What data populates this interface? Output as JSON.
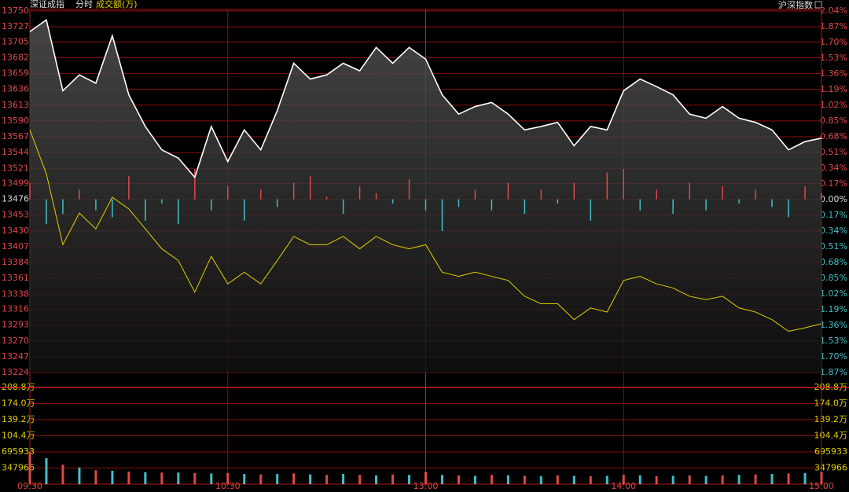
{
  "chart_data": {
    "type": "line",
    "title": "深证成指",
    "subtitle": "分时",
    "volume_label": "成交额(万)",
    "right_title": "沪深指数",
    "xlim": [
      0,
      240
    ],
    "xticks": [
      {
        "value": 0,
        "label": "09:30"
      },
      {
        "value": 60,
        "label": "10:30"
      },
      {
        "value": 120,
        "label": "13:00"
      },
      {
        "value": 180,
        "label": "14:00"
      },
      {
        "value": 240,
        "label": "15:00"
      }
    ],
    "x": [
      0,
      5,
      10,
      15,
      20,
      25,
      30,
      35,
      40,
      45,
      50,
      55,
      60,
      65,
      70,
      75,
      80,
      85,
      90,
      95,
      100,
      105,
      110,
      115,
      120,
      125,
      130,
      135,
      140,
      145,
      150,
      155,
      160,
      165,
      170,
      175,
      180,
      185,
      190,
      195,
      200,
      205,
      210,
      215,
      220,
      225,
      230,
      235,
      240
    ],
    "ylim": [
      13224,
      13750
    ],
    "yticks": [
      13750,
      13727,
      13705,
      13682,
      13659,
      13636,
      13613,
      13590,
      13567,
      13544,
      13521,
      13499,
      13476,
      13453,
      13430,
      13407,
      13384,
      13361,
      13338,
      13316,
      13293,
      13270,
      13247,
      13224
    ],
    "y2lim": [
      -1.87,
      2.04
    ],
    "y2ticks": [
      {
        "value": 2.04,
        "label": "2.04%"
      },
      {
        "value": 1.87,
        "label": "1.87%"
      },
      {
        "value": 1.7,
        "label": "1.70%"
      },
      {
        "value": 1.53,
        "label": "1.53%"
      },
      {
        "value": 1.36,
        "label": "1.36%"
      },
      {
        "value": 1.19,
        "label": "1.19%"
      },
      {
        "value": 1.02,
        "label": "1.02%"
      },
      {
        "value": 0.85,
        "label": "0.85%"
      },
      {
        "value": 0.68,
        "label": "0.68%"
      },
      {
        "value": 0.51,
        "label": "0.51%"
      },
      {
        "value": 0.34,
        "label": "0.34%"
      },
      {
        "value": 0.17,
        "label": "0.17%"
      },
      {
        "value": 0,
        "label": "0.00%"
      },
      {
        "value": -0.17,
        "label": "0.17%"
      },
      {
        "value": -0.34,
        "label": "0.34%"
      },
      {
        "value": -0.51,
        "label": "0.51%"
      },
      {
        "value": -0.68,
        "label": "0.68%"
      },
      {
        "value": -0.85,
        "label": "0.85%"
      },
      {
        "value": -1.02,
        "label": "1.02%"
      },
      {
        "value": -1.19,
        "label": "1.19%"
      },
      {
        "value": -1.36,
        "label": "1.36%"
      },
      {
        "value": -1.53,
        "label": "1.53%"
      },
      {
        "value": -1.7,
        "label": "1.70%"
      },
      {
        "value": -1.87,
        "label": "1.87%"
      }
    ],
    "grid": true,
    "series": [
      {
        "name": "深证成指",
        "color": "#ffffff",
        "values": [
          13720,
          13737,
          13634,
          13657,
          13645,
          13714,
          13628,
          13582,
          13548,
          13536,
          13508,
          13582,
          13531,
          13577,
          13548,
          13605,
          13674,
          13651,
          13657,
          13674,
          13663,
          13697,
          13674,
          13697,
          13680,
          13628,
          13600,
          13611,
          13617,
          13600,
          13577,
          13582,
          13588,
          13554,
          13582,
          13577,
          13634,
          13651,
          13640,
          13628,
          13600,
          13594,
          13611,
          13594,
          13588,
          13577,
          13548,
          13560,
          13565
        ]
      },
      {
        "name": "沪深指数",
        "color": "#e0d000",
        "values": [
          13577,
          13513,
          13410,
          13456,
          13433,
          13479,
          13462,
          13433,
          13404,
          13387,
          13341,
          13393,
          13353,
          13370,
          13353,
          13387,
          13422,
          13410,
          13410,
          13422,
          13404,
          13422,
          13410,
          13404,
          13410,
          13370,
          13364,
          13370,
          13364,
          13358,
          13335,
          13324,
          13324,
          13301,
          13318,
          13312,
          13358,
          13364,
          13353,
          13347,
          13335,
          13330,
          13335,
          13318,
          13312,
          13301,
          13284,
          13289,
          13295
        ]
      }
    ],
    "diff_bars": {
      "up_color": "#e04848",
      "down_color": "#40c0c8",
      "values": [
        13500,
        13440,
        13455,
        13490,
        13460,
        13450,
        13510,
        13445,
        13470,
        13440,
        13520,
        13460,
        13495,
        13445,
        13490,
        13465,
        13500,
        13510,
        13480,
        13455,
        13495,
        13485,
        13470,
        13505,
        13460,
        13430,
        13465,
        13490,
        13460,
        13500,
        13455,
        13490,
        13470,
        13500,
        13445,
        13515,
        13520,
        13460,
        13490,
        13455,
        13500,
        13460,
        13495,
        13470,
        13490,
        13465,
        13450,
        13495,
        13485
      ]
    },
    "volume": {
      "ylim": [
        0,
        2087799
      ],
      "yticks": [
        {
          "value": 2087799,
          "label": "208.8万"
        },
        {
          "value": 1739832,
          "label": "174.0万"
        },
        {
          "value": 1391866,
          "label": "139.2万"
        },
        {
          "value": 1043899,
          "label": "104.4万"
        },
        695933,
        347966
      ],
      "colors": [
        "#e04848",
        "#40c0c8"
      ],
      "values": [
        700000,
        560000,
        420000,
        360000,
        300000,
        290000,
        270000,
        260000,
        250000,
        250000,
        240000,
        230000,
        240000,
        220000,
        210000,
        220000,
        230000,
        210000,
        200000,
        220000,
        200000,
        190000,
        210000,
        200000,
        260000,
        200000,
        190000,
        180000,
        200000,
        190000,
        180000,
        170000,
        190000,
        180000,
        170000,
        180000,
        200000,
        190000,
        170000,
        180000,
        190000,
        180000,
        190000,
        200000,
        210000,
        220000,
        230000,
        240000,
        260000
      ]
    }
  }
}
